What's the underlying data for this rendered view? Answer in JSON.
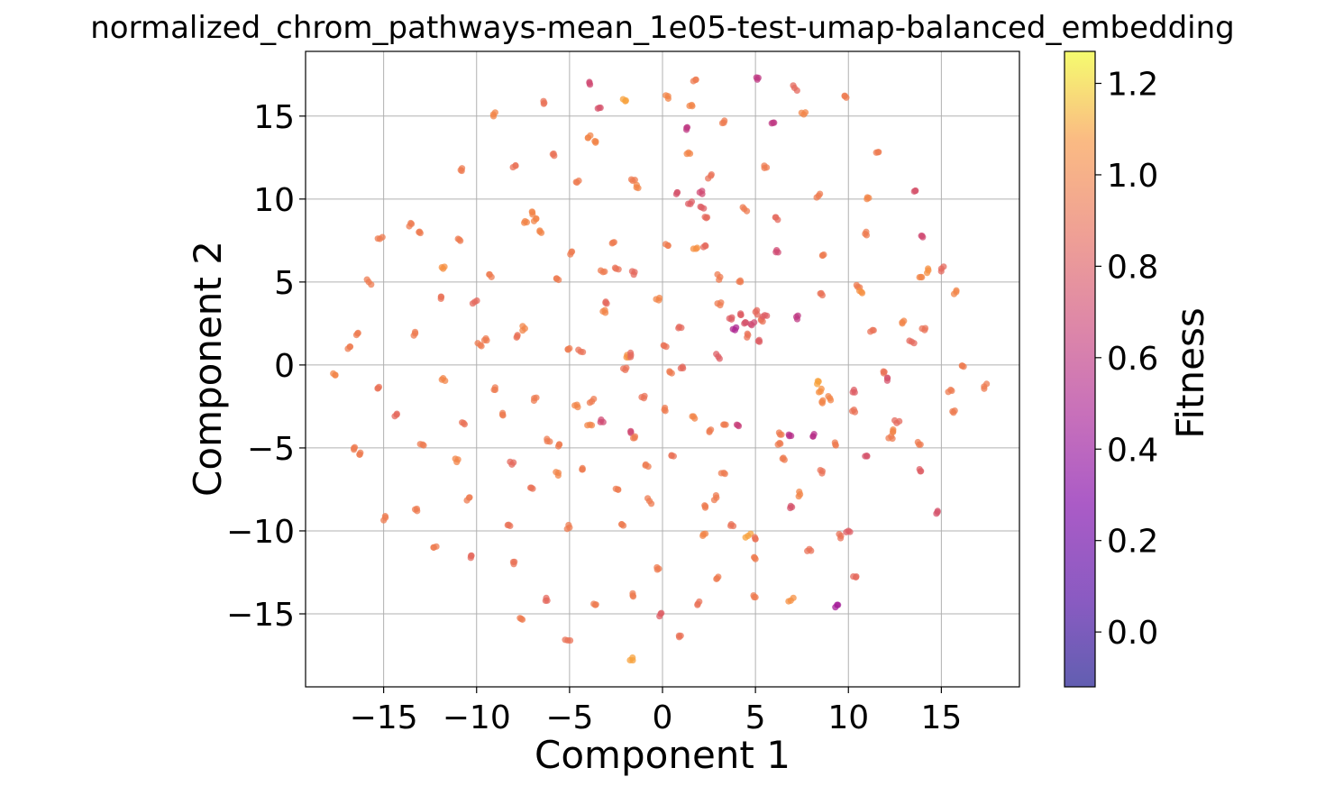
{
  "chart_data": {
    "type": "scatter",
    "title": "normalized_chrom_pathways-mean_1e05-test-umap-balanced_embedding",
    "xlabel": "Component 1",
    "ylabel": "Component 2",
    "xlim": [
      -19.2,
      19.2
    ],
    "ylim": [
      -19.4,
      18.9
    ],
    "xticks": [
      -15,
      -10,
      -5,
      0,
      5,
      10,
      15
    ],
    "xtick_labels": [
      "−15",
      "−10",
      "−5",
      "0",
      "5",
      "10",
      "15"
    ],
    "yticks": [
      -15,
      -10,
      -5,
      0,
      5,
      10,
      15
    ],
    "ytick_labels": [
      "−15",
      "−10",
      "−5",
      "0",
      "5",
      "10",
      "15"
    ],
    "grid": true,
    "colormap": "plasma",
    "colorbar": {
      "label": "Fitness",
      "range": [
        -0.12,
        1.27
      ],
      "ticks": [
        0.0,
        0.2,
        0.4,
        0.6,
        0.8,
        1.0,
        1.2
      ],
      "tick_labels": [
        "0.0",
        "0.2",
        "0.4",
        "0.6",
        "0.8",
        "1.0",
        "1.2"
      ]
    },
    "point_alpha": 0.75,
    "points": [
      [
        -17.6,
        -0.6,
        1.0
      ],
      [
        -16.8,
        1.1,
        0.95
      ],
      [
        -16.4,
        1.9,
        0.95
      ],
      [
        -16.6,
        -5.1,
        0.95
      ],
      [
        -16.3,
        -5.4,
        0.95
      ],
      [
        -15.8,
        5.0,
        0.95
      ],
      [
        -15.2,
        7.6,
        0.95
      ],
      [
        -15.3,
        -1.4,
        0.9
      ],
      [
        -14.9,
        -9.2,
        0.95
      ],
      [
        -14.3,
        -3.0,
        0.85
      ],
      [
        -13.5,
        8.5,
        0.95
      ],
      [
        -13.3,
        1.9,
        0.95
      ],
      [
        -13.1,
        8.0,
        0.95
      ],
      [
        -13.2,
        -8.8,
        0.95
      ],
      [
        -12.9,
        -4.8,
        0.95
      ],
      [
        -12.3,
        -11.0,
        0.95
      ],
      [
        -11.9,
        4.1,
        0.9
      ],
      [
        -11.8,
        5.8,
        1.05
      ],
      [
        -11.8,
        -0.8,
        1.0
      ],
      [
        -11.0,
        7.6,
        0.95
      ],
      [
        -10.8,
        11.7,
        0.95
      ],
      [
        -10.7,
        -3.5,
        0.9
      ],
      [
        -11.0,
        -5.7,
        1.0
      ],
      [
        -10.4,
        -8.0,
        0.95
      ],
      [
        -10.3,
        -11.5,
        0.85
      ],
      [
        -10.1,
        3.8,
        0.85
      ],
      [
        -9.8,
        1.2,
        0.95
      ],
      [
        -9.5,
        1.6,
        0.95
      ],
      [
        -9.2,
        5.3,
        0.95
      ],
      [
        -9.1,
        15.1,
        1.0
      ],
      [
        -9.0,
        -1.5,
        0.95
      ],
      [
        -8.2,
        -9.7,
        0.9
      ],
      [
        -8.1,
        -6.0,
        0.85
      ],
      [
        -8.0,
        -12.0,
        0.9
      ],
      [
        -7.9,
        12.0,
        0.9
      ],
      [
        -7.8,
        1.8,
        0.9
      ],
      [
        -7.6,
        -15.3,
        0.95
      ],
      [
        -7.4,
        2.2,
        1.0
      ],
      [
        -7.3,
        8.6,
        1.0
      ],
      [
        -7.0,
        9.2,
        1.0
      ],
      [
        -6.8,
        8.8,
        1.0
      ],
      [
        -7.1,
        -7.4,
        0.9
      ],
      [
        -6.9,
        -2.0,
        0.95
      ],
      [
        -6.6,
        8.1,
        1.0
      ],
      [
        -6.4,
        15.9,
        0.9
      ],
      [
        -6.2,
        -4.6,
        0.95
      ],
      [
        -5.9,
        12.7,
        0.9
      ],
      [
        -5.7,
        5.2,
        0.95
      ],
      [
        -5.6,
        -6.5,
        1.0
      ],
      [
        -5.6,
        -4.9,
        0.95
      ],
      [
        -6.2,
        -14.2,
        0.85
      ],
      [
        -5.1,
        -16.6,
        0.9
      ],
      [
        -5.0,
        1.0,
        0.95
      ],
      [
        -4.9,
        6.8,
        0.95
      ],
      [
        -4.6,
        11.0,
        0.95
      ],
      [
        -4.4,
        0.8,
        0.9
      ],
      [
        -4.3,
        -6.3,
        0.95
      ],
      [
        -5.0,
        -9.8,
        0.95
      ],
      [
        -4.0,
        13.7,
        1.0
      ],
      [
        -3.9,
        16.9,
        0.7
      ],
      [
        -3.8,
        -2.2,
        0.95
      ],
      [
        -3.6,
        13.4,
        1.0
      ],
      [
        -3.4,
        15.5,
        0.75
      ],
      [
        -3.3,
        -3.3,
        0.7
      ],
      [
        -3.2,
        5.6,
        0.95
      ],
      [
        -3.1,
        3.3,
        1.0
      ],
      [
        -3.0,
        3.7,
        0.85
      ],
      [
        -3.7,
        -14.4,
        0.95
      ],
      [
        -2.6,
        7.4,
        0.95
      ],
      [
        -2.5,
        5.8,
        0.9
      ],
      [
        -2.4,
        -7.5,
        0.95
      ],
      [
        -2.2,
        -9.6,
        0.95
      ],
      [
        -2.0,
        15.9,
        1.1
      ],
      [
        -1.9,
        0.6,
        1.05
      ],
      [
        -1.7,
        0.6,
        0.85
      ],
      [
        -1.6,
        11.1,
        0.95
      ],
      [
        -1.5,
        5.6,
        0.85
      ],
      [
        -1.4,
        10.7,
        1.0
      ],
      [
        -1.7,
        -4.1,
        0.7
      ],
      [
        -1.5,
        -4.4,
        0.95
      ],
      [
        -1.6,
        -13.9,
        0.95
      ],
      [
        -1.6,
        -17.8,
        1.1
      ],
      [
        -1.0,
        -2.0,
        0.9
      ],
      [
        -0.9,
        -6.0,
        0.95
      ],
      [
        -0.7,
        -8.2,
        0.95
      ],
      [
        -0.3,
        -12.2,
        0.95
      ],
      [
        -0.2,
        3.9,
        1.0
      ],
      [
        -0.1,
        -15.0,
        0.8
      ],
      [
        0.1,
        -2.7,
        0.95
      ],
      [
        0.2,
        1.1,
        0.9
      ],
      [
        0.3,
        7.2,
        0.95
      ],
      [
        0.3,
        16.2,
        1.0
      ],
      [
        0.5,
        -0.5,
        0.95
      ],
      [
        0.6,
        -5.5,
        0.9
      ],
      [
        0.8,
        10.4,
        0.75
      ],
      [
        0.9,
        2.3,
        0.85
      ],
      [
        0.9,
        -16.4,
        0.9
      ],
      [
        1.3,
        14.3,
        0.6
      ],
      [
        1.1,
        -0.2,
        0.85
      ],
      [
        1.4,
        12.8,
        1.0
      ],
      [
        1.5,
        9.7,
        0.8
      ],
      [
        1.6,
        15.6,
        1.0
      ],
      [
        1.8,
        7.0,
        1.05
      ],
      [
        1.8,
        17.2,
        0.95
      ],
      [
        1.9,
        -14.4,
        0.9
      ],
      [
        2.0,
        10.4,
        0.7
      ],
      [
        2.1,
        9.5,
        0.8
      ],
      [
        2.2,
        -10.2,
        1.0
      ],
      [
        2.3,
        7.2,
        0.85
      ],
      [
        2.4,
        8.9,
        0.85
      ],
      [
        2.3,
        -8.6,
        0.95
      ],
      [
        2.6,
        11.4,
        0.9
      ],
      [
        2.6,
        -3.9,
        0.95
      ],
      [
        2.9,
        -12.9,
        0.95
      ],
      [
        3.0,
        0.5,
        0.8
      ],
      [
        3.1,
        3.6,
        0.95
      ],
      [
        3.1,
        5.3,
        0.95
      ],
      [
        3.3,
        14.6,
        0.95
      ],
      [
        3.4,
        -3.6,
        0.95
      ],
      [
        3.3,
        -6.5,
        0.95
      ],
      [
        3.6,
        2.8,
        0.8
      ],
      [
        3.9,
        2.1,
        0.5
      ],
      [
        4.2,
        3.1,
        0.8
      ],
      [
        4.4,
        9.4,
        0.95
      ],
      [
        4.4,
        2.5,
        0.75
      ],
      [
        4.6,
        1.8,
        0.9
      ],
      [
        4.8,
        2.4,
        0.7
      ],
      [
        5.0,
        3.2,
        0.85
      ],
      [
        5.2,
        1.5,
        0.8
      ],
      [
        5.3,
        2.7,
        0.9
      ],
      [
        4.0,
        -3.6,
        0.65
      ],
      [
        4.6,
        -10.3,
        1.1
      ],
      [
        5.0,
        -10.5,
        0.9
      ],
      [
        5.0,
        -11.7,
        0.95
      ],
      [
        5.0,
        -14.0,
        0.95
      ],
      [
        5.1,
        17.2,
        0.6
      ],
      [
        5.6,
        11.9,
        0.95
      ],
      [
        6.0,
        14.6,
        0.6
      ],
      [
        6.1,
        8.9,
        0.85
      ],
      [
        6.1,
        6.8,
        0.7
      ],
      [
        6.4,
        -4.2,
        0.95
      ],
      [
        6.3,
        -4.7,
        0.95
      ],
      [
        6.5,
        -5.6,
        0.95
      ],
      [
        6.8,
        -4.2,
        0.55
      ],
      [
        6.9,
        -8.5,
        0.75
      ],
      [
        6.9,
        -14.2,
        1.05
      ],
      [
        7.1,
        16.7,
        0.85
      ],
      [
        7.2,
        2.9,
        0.6
      ],
      [
        7.6,
        15.1,
        1.0
      ],
      [
        7.9,
        -11.1,
        0.9
      ],
      [
        8.1,
        -4.3,
        0.55
      ],
      [
        8.4,
        10.2,
        0.95
      ],
      [
        8.5,
        -1.6,
        1.05
      ],
      [
        8.6,
        -6.4,
        0.9
      ],
      [
        8.6,
        6.6,
        0.95
      ],
      [
        8.6,
        4.2,
        0.9
      ],
      [
        8.6,
        -2.3,
        1.0
      ],
      [
        8.4,
        -1.0,
        1.1
      ],
      [
        9.0,
        -2.0,
        1.0
      ],
      [
        9.3,
        -14.6,
        0.45
      ],
      [
        9.3,
        -4.8,
        0.95
      ],
      [
        9.6,
        -10.3,
        0.9
      ],
      [
        9.8,
        16.2,
        0.95
      ],
      [
        10.0,
        -10.0,
        0.8
      ],
      [
        10.3,
        -1.5,
        0.8
      ],
      [
        10.3,
        -2.7,
        0.9
      ],
      [
        10.4,
        -12.8,
        0.85
      ],
      [
        10.5,
        4.7,
        0.95
      ],
      [
        10.7,
        4.4,
        1.05
      ],
      [
        10.9,
        7.9,
        0.95
      ],
      [
        10.9,
        -5.5,
        0.75
      ],
      [
        11.0,
        10.0,
        1.0
      ],
      [
        11.3,
        2.1,
        0.9
      ],
      [
        11.5,
        12.8,
        0.95
      ],
      [
        11.9,
        -0.5,
        0.9
      ],
      [
        12.1,
        -0.8,
        0.75
      ],
      [
        12.3,
        -4.3,
        0.95
      ],
      [
        12.6,
        -3.5,
        0.85
      ],
      [
        12.9,
        2.5,
        1.0
      ],
      [
        13.4,
        1.4,
        0.85
      ],
      [
        13.6,
        10.5,
        0.75
      ],
      [
        13.8,
        -4.8,
        0.95
      ],
      [
        13.9,
        5.3,
        1.0
      ],
      [
        14.0,
        7.7,
        0.7
      ],
      [
        14.1,
        2.1,
        0.9
      ],
      [
        14.3,
        5.7,
        1.05
      ],
      [
        14.8,
        -8.8,
        0.75
      ],
      [
        15.0,
        5.8,
        0.85
      ],
      [
        15.5,
        -1.5,
        0.95
      ],
      [
        15.6,
        -2.8,
        0.95
      ],
      [
        15.8,
        4.4,
        1.0
      ],
      [
        16.2,
        -0.1,
        0.95
      ],
      [
        17.3,
        -1.3,
        0.95
      ],
      [
        13.9,
        -6.4,
        0.8
      ],
      [
        12.4,
        -4.0,
        1.0
      ],
      [
        -4.6,
        -2.4,
        1.0
      ],
      [
        -3.9,
        -3.6,
        1.0
      ],
      [
        -2.0,
        -0.3,
        0.9
      ],
      [
        1.6,
        -3.1,
        1.0
      ],
      [
        2.9,
        -8.0,
        0.95
      ],
      [
        3.7,
        -9.6,
        0.9
      ],
      [
        4.2,
        5.0,
        0.95
      ],
      [
        5.5,
        3.0,
        0.8
      ],
      [
        7.4,
        -7.8,
        1.0
      ],
      [
        -8.6,
        -2.9,
        0.95
      ]
    ]
  }
}
